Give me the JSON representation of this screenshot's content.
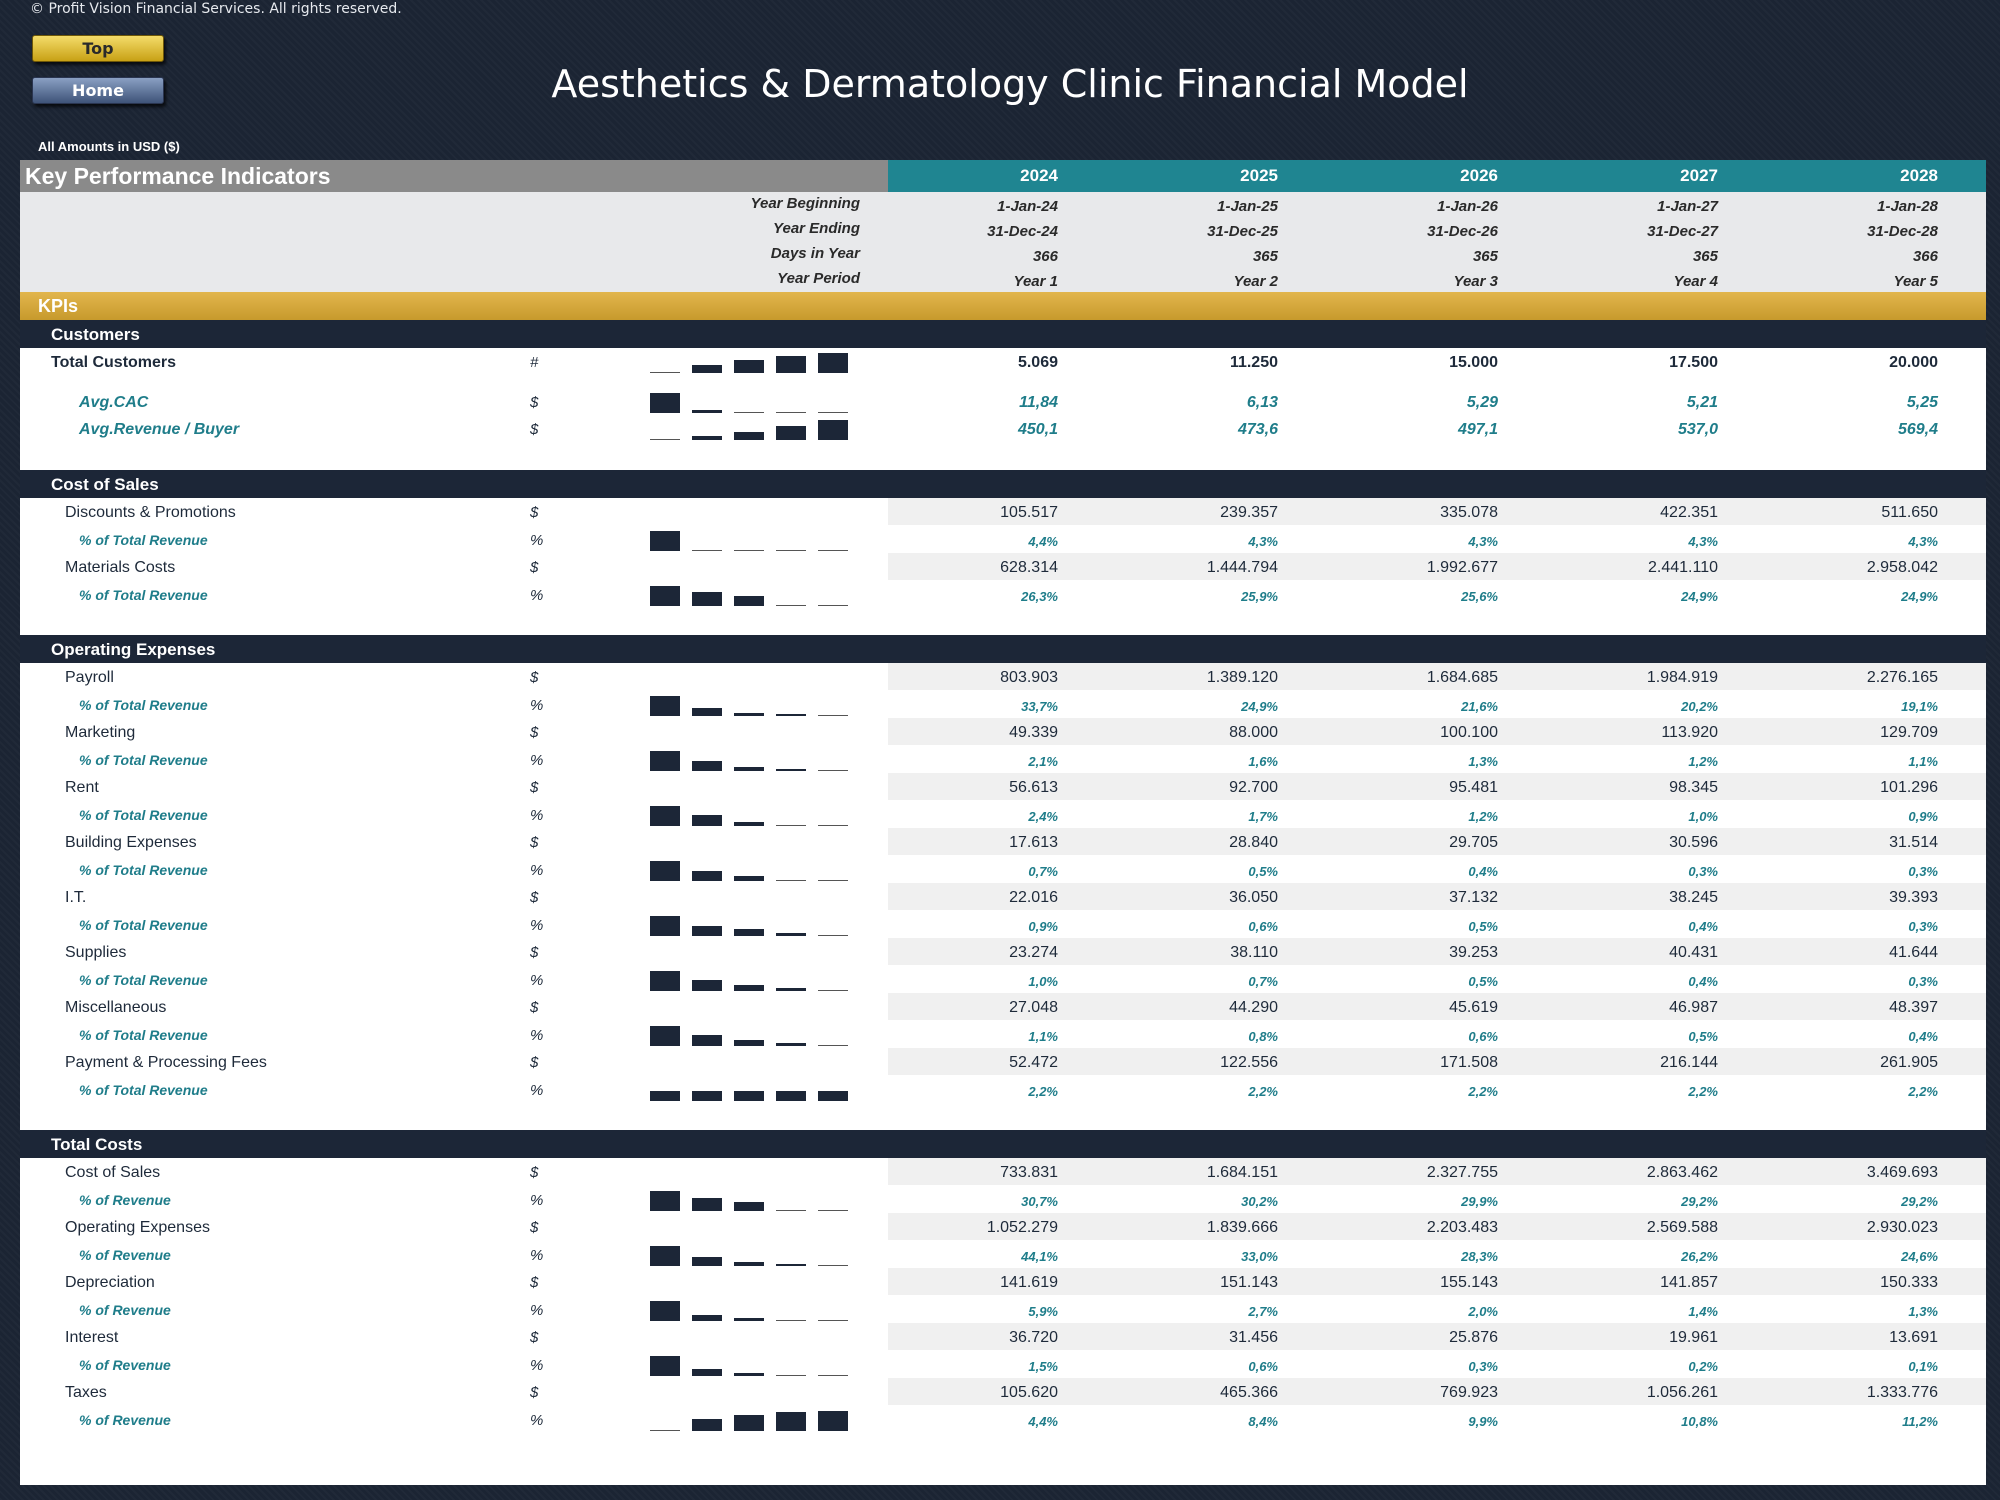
{
  "header": {
    "copyright": "© Profit Vision Financial Services. All rights reserved.",
    "top_button": "Top",
    "home_button": "Home",
    "title": "Aesthetics & Dermatology Clinic Financial Model",
    "amounts_note": "All Amounts in  USD ($)"
  },
  "table": {
    "title": "Key Performance Indicators",
    "years": [
      "2024",
      "2025",
      "2026",
      "2027",
      "2028"
    ],
    "date_rows": [
      {
        "label": "Year Beginning",
        "values": [
          "1-Jan-24",
          "1-Jan-25",
          "1-Jan-26",
          "1-Jan-27",
          "1-Jan-28"
        ]
      },
      {
        "label": "Year Ending",
        "values": [
          "31-Dec-24",
          "31-Dec-25",
          "31-Dec-26",
          "31-Dec-27",
          "31-Dec-28"
        ]
      },
      {
        "label": "Days in Year",
        "values": [
          "366",
          "365",
          "365",
          "365",
          "366"
        ]
      },
      {
        "label": "Year Period",
        "values": [
          "Year 1",
          "Year 2",
          "Year 3",
          "Year 4",
          "Year 5"
        ]
      }
    ],
    "kpi_band": "KPIs",
    "sections": [
      {
        "title": "Customers",
        "rows": [
          {
            "label": "Total Customers",
            "style": "total",
            "unit": "#",
            "values": [
              "5.069",
              "11.250",
              "15.000",
              "17.500",
              "20.000"
            ],
            "spark": [
              0.25,
              0.56,
              0.75,
              0.88,
              1.0
            ]
          },
          {
            "label": "Avg.CAC",
            "style": "kpi",
            "unit": "$",
            "values": [
              "11,84",
              "6,13",
              "5,29",
              "5,21",
              "5,25"
            ],
            "spark": [
              1.0,
              0.52,
              0.45,
              0.44,
              0.44
            ]
          },
          {
            "label": "Avg.Revenue / Buyer",
            "style": "kpi",
            "unit": "$",
            "values": [
              "450,1",
              "473,6",
              "497,1",
              "537,0",
              "569,4"
            ],
            "spark": [
              0.79,
              0.83,
              0.87,
              0.94,
              1.0
            ]
          }
        ]
      },
      {
        "title": "Cost of Sales",
        "rows": [
          {
            "label": "Discounts & Promotions",
            "style": "item",
            "unit": "$",
            "values": [
              "105.517",
              "239.357",
              "335.078",
              "422.351",
              "511.650"
            ],
            "spark": null
          },
          {
            "label": "% of Total Revenue",
            "style": "pct",
            "unit": "%",
            "values": [
              "4,4%",
              "4,3%",
              "4,3%",
              "4,3%",
              "4,3%"
            ],
            "spark": [
              4.4,
              4.3,
              4.3,
              4.3,
              4.3
            ]
          },
          {
            "label": "Materials Costs",
            "style": "item",
            "unit": "$",
            "values": [
              "628.314",
              "1.444.794",
              "1.992.677",
              "2.441.110",
              "2.958.042"
            ],
            "spark": null
          },
          {
            "label": "% of Total Revenue",
            "style": "pct",
            "unit": "%",
            "values": [
              "26,3%",
              "25,9%",
              "25,6%",
              "24,9%",
              "24,9%"
            ],
            "spark": [
              26.3,
              25.9,
              25.6,
              24.9,
              24.9
            ]
          }
        ]
      },
      {
        "title": "Operating Expenses",
        "rows": [
          {
            "label": "Payroll",
            "style": "item",
            "unit": "$",
            "values": [
              "803.903",
              "1.389.120",
              "1.684.685",
              "1.984.919",
              "2.276.165"
            ],
            "spark": null
          },
          {
            "label": "% of Total Revenue",
            "style": "pct",
            "unit": "%",
            "values": [
              "33,7%",
              "24,9%",
              "21,6%",
              "20,2%",
              "19,1%"
            ],
            "spark": [
              33.7,
              24.9,
              21.6,
              20.2,
              19.1
            ]
          },
          {
            "label": "Marketing",
            "style": "item",
            "unit": "$",
            "values": [
              "49.339",
              "88.000",
              "100.100",
              "113.920",
              "129.709"
            ],
            "spark": null
          },
          {
            "label": "% of Total Revenue",
            "style": "pct",
            "unit": "%",
            "values": [
              "2,1%",
              "1,6%",
              "1,3%",
              "1,2%",
              "1,1%"
            ],
            "spark": [
              2.1,
              1.6,
              1.3,
              1.2,
              1.1
            ]
          },
          {
            "label": "Rent",
            "style": "item",
            "unit": "$",
            "values": [
              "56.613",
              "92.700",
              "95.481",
              "98.345",
              "101.296"
            ],
            "spark": null
          },
          {
            "label": "% of Total Revenue",
            "style": "pct",
            "unit": "%",
            "values": [
              "2,4%",
              "1,7%",
              "1,2%",
              "1,0%",
              "0,9%"
            ],
            "spark": [
              2.4,
              1.7,
              1.2,
              1.0,
              0.9
            ]
          },
          {
            "label": "Building Expenses",
            "style": "item",
            "unit": "$",
            "values": [
              "17.613",
              "28.840",
              "29.705",
              "30.596",
              "31.514"
            ],
            "spark": null
          },
          {
            "label": "% of Total Revenue",
            "style": "pct",
            "unit": "%",
            "values": [
              "0,7%",
              "0,5%",
              "0,4%",
              "0,3%",
              "0,3%"
            ],
            "spark": [
              0.7,
              0.5,
              0.4,
              0.3,
              0.3
            ]
          },
          {
            "label": "I.T.",
            "style": "item",
            "unit": "$",
            "values": [
              "22.016",
              "36.050",
              "37.132",
              "38.245",
              "39.393"
            ],
            "spark": null
          },
          {
            "label": "% of Total Revenue",
            "style": "pct",
            "unit": "%",
            "values": [
              "0,9%",
              "0,6%",
              "0,5%",
              "0,4%",
              "0,3%"
            ],
            "spark": [
              0.9,
              0.6,
              0.5,
              0.4,
              0.3
            ]
          },
          {
            "label": "Supplies",
            "style": "item",
            "unit": "$",
            "values": [
              "23.274",
              "38.110",
              "39.253",
              "40.431",
              "41.644"
            ],
            "spark": null
          },
          {
            "label": "% of Total Revenue",
            "style": "pct",
            "unit": "%",
            "values": [
              "1,0%",
              "0,7%",
              "0,5%",
              "0,4%",
              "0,3%"
            ],
            "spark": [
              1.0,
              0.7,
              0.5,
              0.4,
              0.3
            ]
          },
          {
            "label": "Miscellaneous",
            "style": "item",
            "unit": "$",
            "values": [
              "27.048",
              "44.290",
              "45.619",
              "46.987",
              "48.397"
            ],
            "spark": null
          },
          {
            "label": "% of Total Revenue",
            "style": "pct",
            "unit": "%",
            "values": [
              "1,1%",
              "0,8%",
              "0,6%",
              "0,5%",
              "0,4%"
            ],
            "spark": [
              1.1,
              0.8,
              0.6,
              0.5,
              0.4
            ]
          },
          {
            "label": "Payment & Processing Fees",
            "style": "item",
            "unit": "$",
            "values": [
              "52.472",
              "122.556",
              "171.508",
              "216.144",
              "261.905"
            ],
            "spark": null
          },
          {
            "label": "% of Total Revenue",
            "style": "pct",
            "unit": "%",
            "values": [
              "2,2%",
              "2,2%",
              "2,2%",
              "2,2%",
              "2,2%"
            ],
            "spark": [
              2.2,
              2.2,
              2.2,
              2.2,
              2.2
            ]
          }
        ]
      },
      {
        "title": "Total Costs",
        "rows": [
          {
            "label": "Cost of Sales",
            "style": "item",
            "unit": "$",
            "values": [
              "733.831",
              "1.684.151",
              "2.327.755",
              "2.863.462",
              "3.469.693"
            ],
            "spark": null
          },
          {
            "label": "% of Revenue",
            "style": "pct",
            "unit": "%",
            "values": [
              "30,7%",
              "30,2%",
              "29,9%",
              "29,2%",
              "29,2%"
            ],
            "spark": [
              30.7,
              30.2,
              29.9,
              29.2,
              29.2
            ]
          },
          {
            "label": "Operating Expenses",
            "style": "item",
            "unit": "$",
            "values": [
              "1.052.279",
              "1.839.666",
              "2.203.483",
              "2.569.588",
              "2.930.023"
            ],
            "spark": null
          },
          {
            "label": "% of Revenue",
            "style": "pct",
            "unit": "%",
            "values": [
              "44,1%",
              "33,0%",
              "28,3%",
              "26,2%",
              "24,6%"
            ],
            "spark": [
              44.1,
              33.0,
              28.3,
              26.2,
              24.6
            ]
          },
          {
            "label": "Depreciation",
            "style": "item",
            "unit": "$",
            "values": [
              "141.619",
              "151.143",
              "155.143",
              "141.857",
              "150.333"
            ],
            "spark": null
          },
          {
            "label": "% of Revenue",
            "style": "pct",
            "unit": "%",
            "values": [
              "5,9%",
              "2,7%",
              "2,0%",
              "1,4%",
              "1,3%"
            ],
            "spark": [
              5.9,
              2.7,
              2.0,
              1.4,
              1.3
            ]
          },
          {
            "label": "Interest",
            "style": "item",
            "unit": "$",
            "values": [
              "36.720",
              "31.456",
              "25.876",
              "19.961",
              "13.691"
            ],
            "spark": null
          },
          {
            "label": "% of Revenue",
            "style": "pct",
            "unit": "%",
            "values": [
              "1,5%",
              "0,6%",
              "0,3%",
              "0,2%",
              "0,1%"
            ],
            "spark": [
              1.5,
              0.6,
              0.3,
              0.2,
              0.1
            ]
          },
          {
            "label": "Taxes",
            "style": "item",
            "unit": "$",
            "values": [
              "105.620",
              "465.366",
              "769.923",
              "1.056.261",
              "1.333.776"
            ],
            "spark": null
          },
          {
            "label": "% of Revenue",
            "style": "pct",
            "unit": "%",
            "values": [
              "4,4%",
              "8,4%",
              "9,9%",
              "10,8%",
              "11,2%"
            ],
            "spark": [
              4.4,
              8.4,
              9.9,
              10.8,
              11.2
            ]
          }
        ]
      }
    ]
  },
  "colors": {
    "background": "#1b2433",
    "header_gray": "#8a8a8a",
    "header_teal": "#1f8591",
    "kpi_gold": "#d4a83a",
    "section_navy": "#1c2637",
    "pct_teal": "#1f7d8a"
  }
}
